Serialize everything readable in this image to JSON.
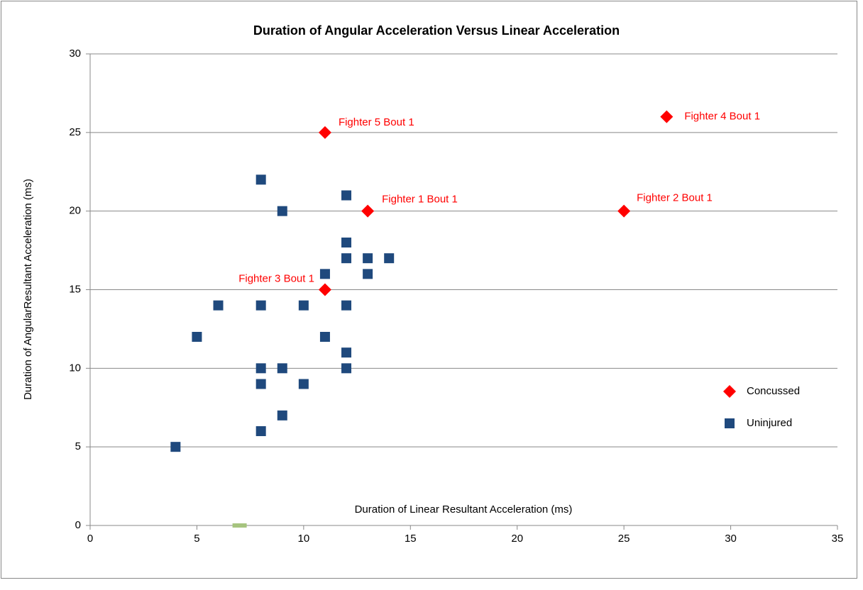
{
  "chart_data": {
    "type": "scatter",
    "title": "Duration of Angular Acceleration Versus Linear Acceleration",
    "x_label": "Duration of Linear Resultant Acceleration (ms)",
    "y_label": "Duration of AngularResultant Acceleration  (ms)",
    "xlim": [
      0,
      35
    ],
    "xticks": [
      0,
      5,
      10,
      15,
      20,
      25,
      30,
      35
    ],
    "ylim": [
      0,
      30
    ],
    "yticks": [
      0,
      5,
      10,
      15,
      20,
      25,
      30
    ],
    "grid": true,
    "legend": "right",
    "series": [
      {
        "name": "Concussed",
        "color": "#ff0000",
        "marker": "diamond",
        "x": [
          11,
          27,
          13,
          25,
          11
        ],
        "values": [
          25,
          26,
          20,
          20,
          15
        ],
        "labels": [
          "Fighter 5 Bout 1",
          "Fighter 4 Bout 1",
          "Fighter 1 Bout 1",
          "Fighter 2 Bout 1",
          "Fighter 3 Bout 1"
        ]
      },
      {
        "name": "Uninjured",
        "color": "#1f497d",
        "marker": "square",
        "x": [
          8,
          9,
          12,
          12,
          12,
          13,
          14,
          11,
          13,
          6,
          8,
          10,
          12,
          5,
          11,
          12,
          8,
          9,
          12,
          8,
          10,
          9,
          8,
          4
        ],
        "values": [
          22,
          20,
          21,
          18,
          17,
          17,
          17,
          16,
          16,
          14,
          14,
          14,
          14,
          12,
          12,
          11,
          10,
          10,
          10,
          9,
          9,
          7,
          6,
          5
        ]
      },
      {
        "color": "#a6c47f",
        "marker": "dash",
        "x": [
          7
        ],
        "values": [
          0
        ]
      }
    ]
  }
}
